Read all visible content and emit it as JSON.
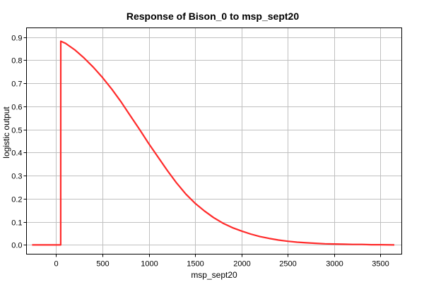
{
  "chart_data": {
    "type": "line",
    "title": "Response of Bison_0 to msp_sept20",
    "xlabel": "msp_sept20",
    "ylabel": "logistic output",
    "xlim": [
      -320,
      3730
    ],
    "ylim": [
      -0.04,
      0.94
    ],
    "xticks": [
      0,
      500,
      1000,
      1500,
      2000,
      2500,
      3000,
      3500
    ],
    "yticks": [
      0.0,
      0.1,
      0.2,
      0.3,
      0.4,
      0.5,
      0.6,
      0.7,
      0.8,
      0.9
    ],
    "ytick_labels": [
      "0.0",
      "0.1",
      "0.2",
      "0.3",
      "0.4",
      "0.5",
      "0.6",
      "0.7",
      "0.8",
      "0.9"
    ],
    "grid": true,
    "line_color": "#ff2b2b",
    "series": [
      {
        "x": [
          -260,
          40,
          49,
          50,
          100,
          200,
          300,
          400,
          500,
          600,
          700,
          800,
          900,
          1000,
          1100,
          1200,
          1300,
          1400,
          1500,
          1600,
          1700,
          1800,
          1900,
          2000,
          2100,
          2200,
          2300,
          2400,
          2500,
          2600,
          2700,
          2800,
          2900,
          3000,
          3100,
          3200,
          3300,
          3400,
          3500,
          3650
        ],
        "y": [
          0.0,
          0.0,
          0.0,
          0.882,
          0.873,
          0.845,
          0.81,
          0.77,
          0.725,
          0.675,
          0.62,
          0.56,
          0.5,
          0.438,
          0.38,
          0.322,
          0.268,
          0.22,
          0.18,
          0.147,
          0.118,
          0.094,
          0.075,
          0.06,
          0.047,
          0.036,
          0.028,
          0.021,
          0.016,
          0.012,
          0.009,
          0.007,
          0.005,
          0.004,
          0.003,
          0.002,
          0.002,
          0.001,
          0.001,
          0.0
        ]
      }
    ]
  }
}
